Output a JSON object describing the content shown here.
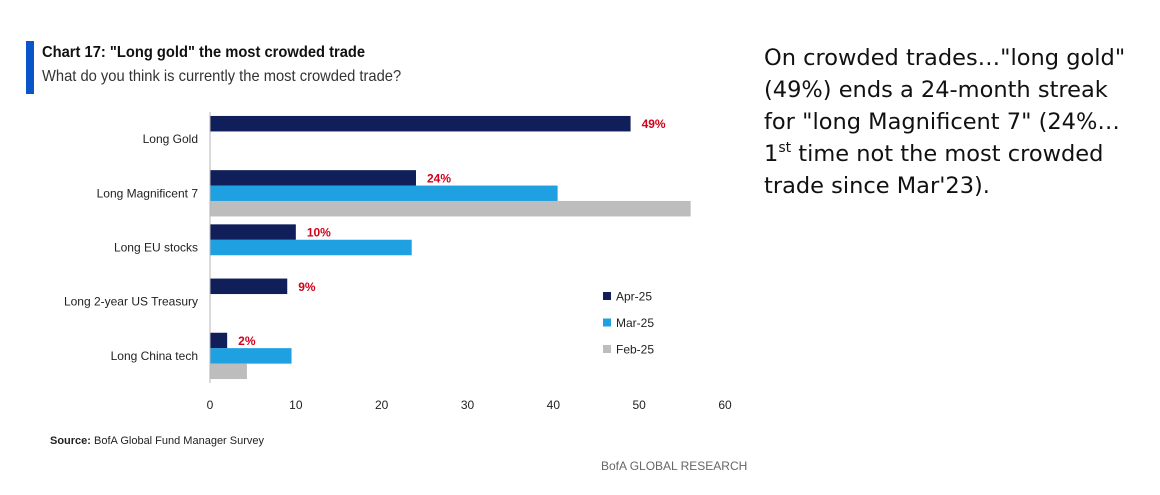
{
  "header": {
    "title": "Chart 17: \"Long gold\" the most crowded trade",
    "subtitle": "What do you think is currently the most crowded trade?"
  },
  "chart_data": {
    "type": "bar",
    "orientation": "horizontal",
    "title": "Chart 17: \"Long gold\" the most crowded trade",
    "subtitle": "What do you think is currently the most crowded trade?",
    "categories": [
      "Long Gold",
      "Long Magnificent 7",
      "Long EU stocks",
      "Long 2-year US Treasury",
      "Long China tech"
    ],
    "series": [
      {
        "name": "Apr-25",
        "color": "#101e5a",
        "values": [
          49,
          24,
          10,
          9,
          2
        ],
        "data_labels": [
          "49%",
          "24%",
          "10%",
          "9%",
          "2%"
        ]
      },
      {
        "name": "Mar-25",
        "color": "#1fa0e0",
        "values": [
          null,
          40.5,
          23.5,
          null,
          9.5
        ]
      },
      {
        "name": "Feb-25",
        "color": "#bdbdbd",
        "values": [
          null,
          56,
          null,
          null,
          4.3
        ]
      }
    ],
    "xlim": [
      0,
      60
    ],
    "xticks": [
      "0",
      "10",
      "20",
      "30",
      "40",
      "50",
      "60"
    ],
    "xlabel": "",
    "ylabel": "",
    "legend_position": "bottom-right",
    "data_label_color": "#d0021b",
    "grid": false
  },
  "source": {
    "label": "Source:",
    "text": "BofA Global Fund Manager Survey"
  },
  "branding": "BofA GLOBAL RESEARCH",
  "commentary": {
    "line1": "On crowded trades…\"long gold\"",
    "line2": "(49%) ends a 24-month streak",
    "line3": "for \"long Magnificent 7\" (24%…",
    "line4_prefix": "1",
    "line4_sup": "st",
    "line4_suffix": " time not the most crowded",
    "line5": "trade since Mar'23)."
  },
  "colors": {
    "accent": "#0a55c8",
    "apr": "#101e5a",
    "mar": "#1fa0e0",
    "feb": "#bdbdbd",
    "label": "#d0021b"
  }
}
